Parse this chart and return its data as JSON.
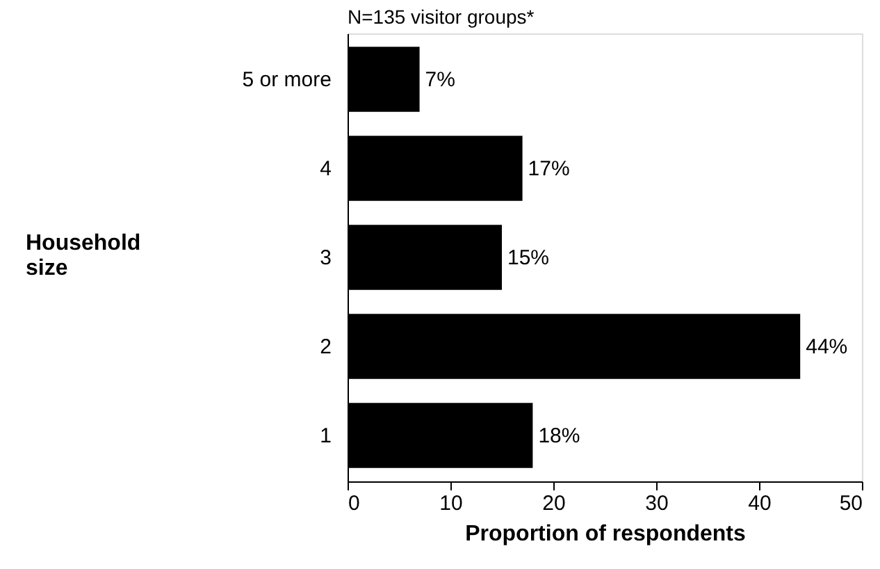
{
  "chart_data": {
    "type": "bar",
    "orientation": "horizontal",
    "title": "N=135 visitor groups*",
    "ylabel": "Household size",
    "xlabel": "Proportion of respondents",
    "categories": [
      "5 or more",
      "4",
      "3",
      "2",
      "1"
    ],
    "values": [
      7,
      17,
      15,
      44,
      18
    ],
    "value_labels": [
      "7%",
      "17%",
      "15%",
      "44%",
      "18%"
    ],
    "color": "#000000",
    "xlim": [
      0,
      50
    ],
    "xticks": [
      0,
      10,
      20,
      30,
      40,
      50
    ],
    "grid": false
  }
}
